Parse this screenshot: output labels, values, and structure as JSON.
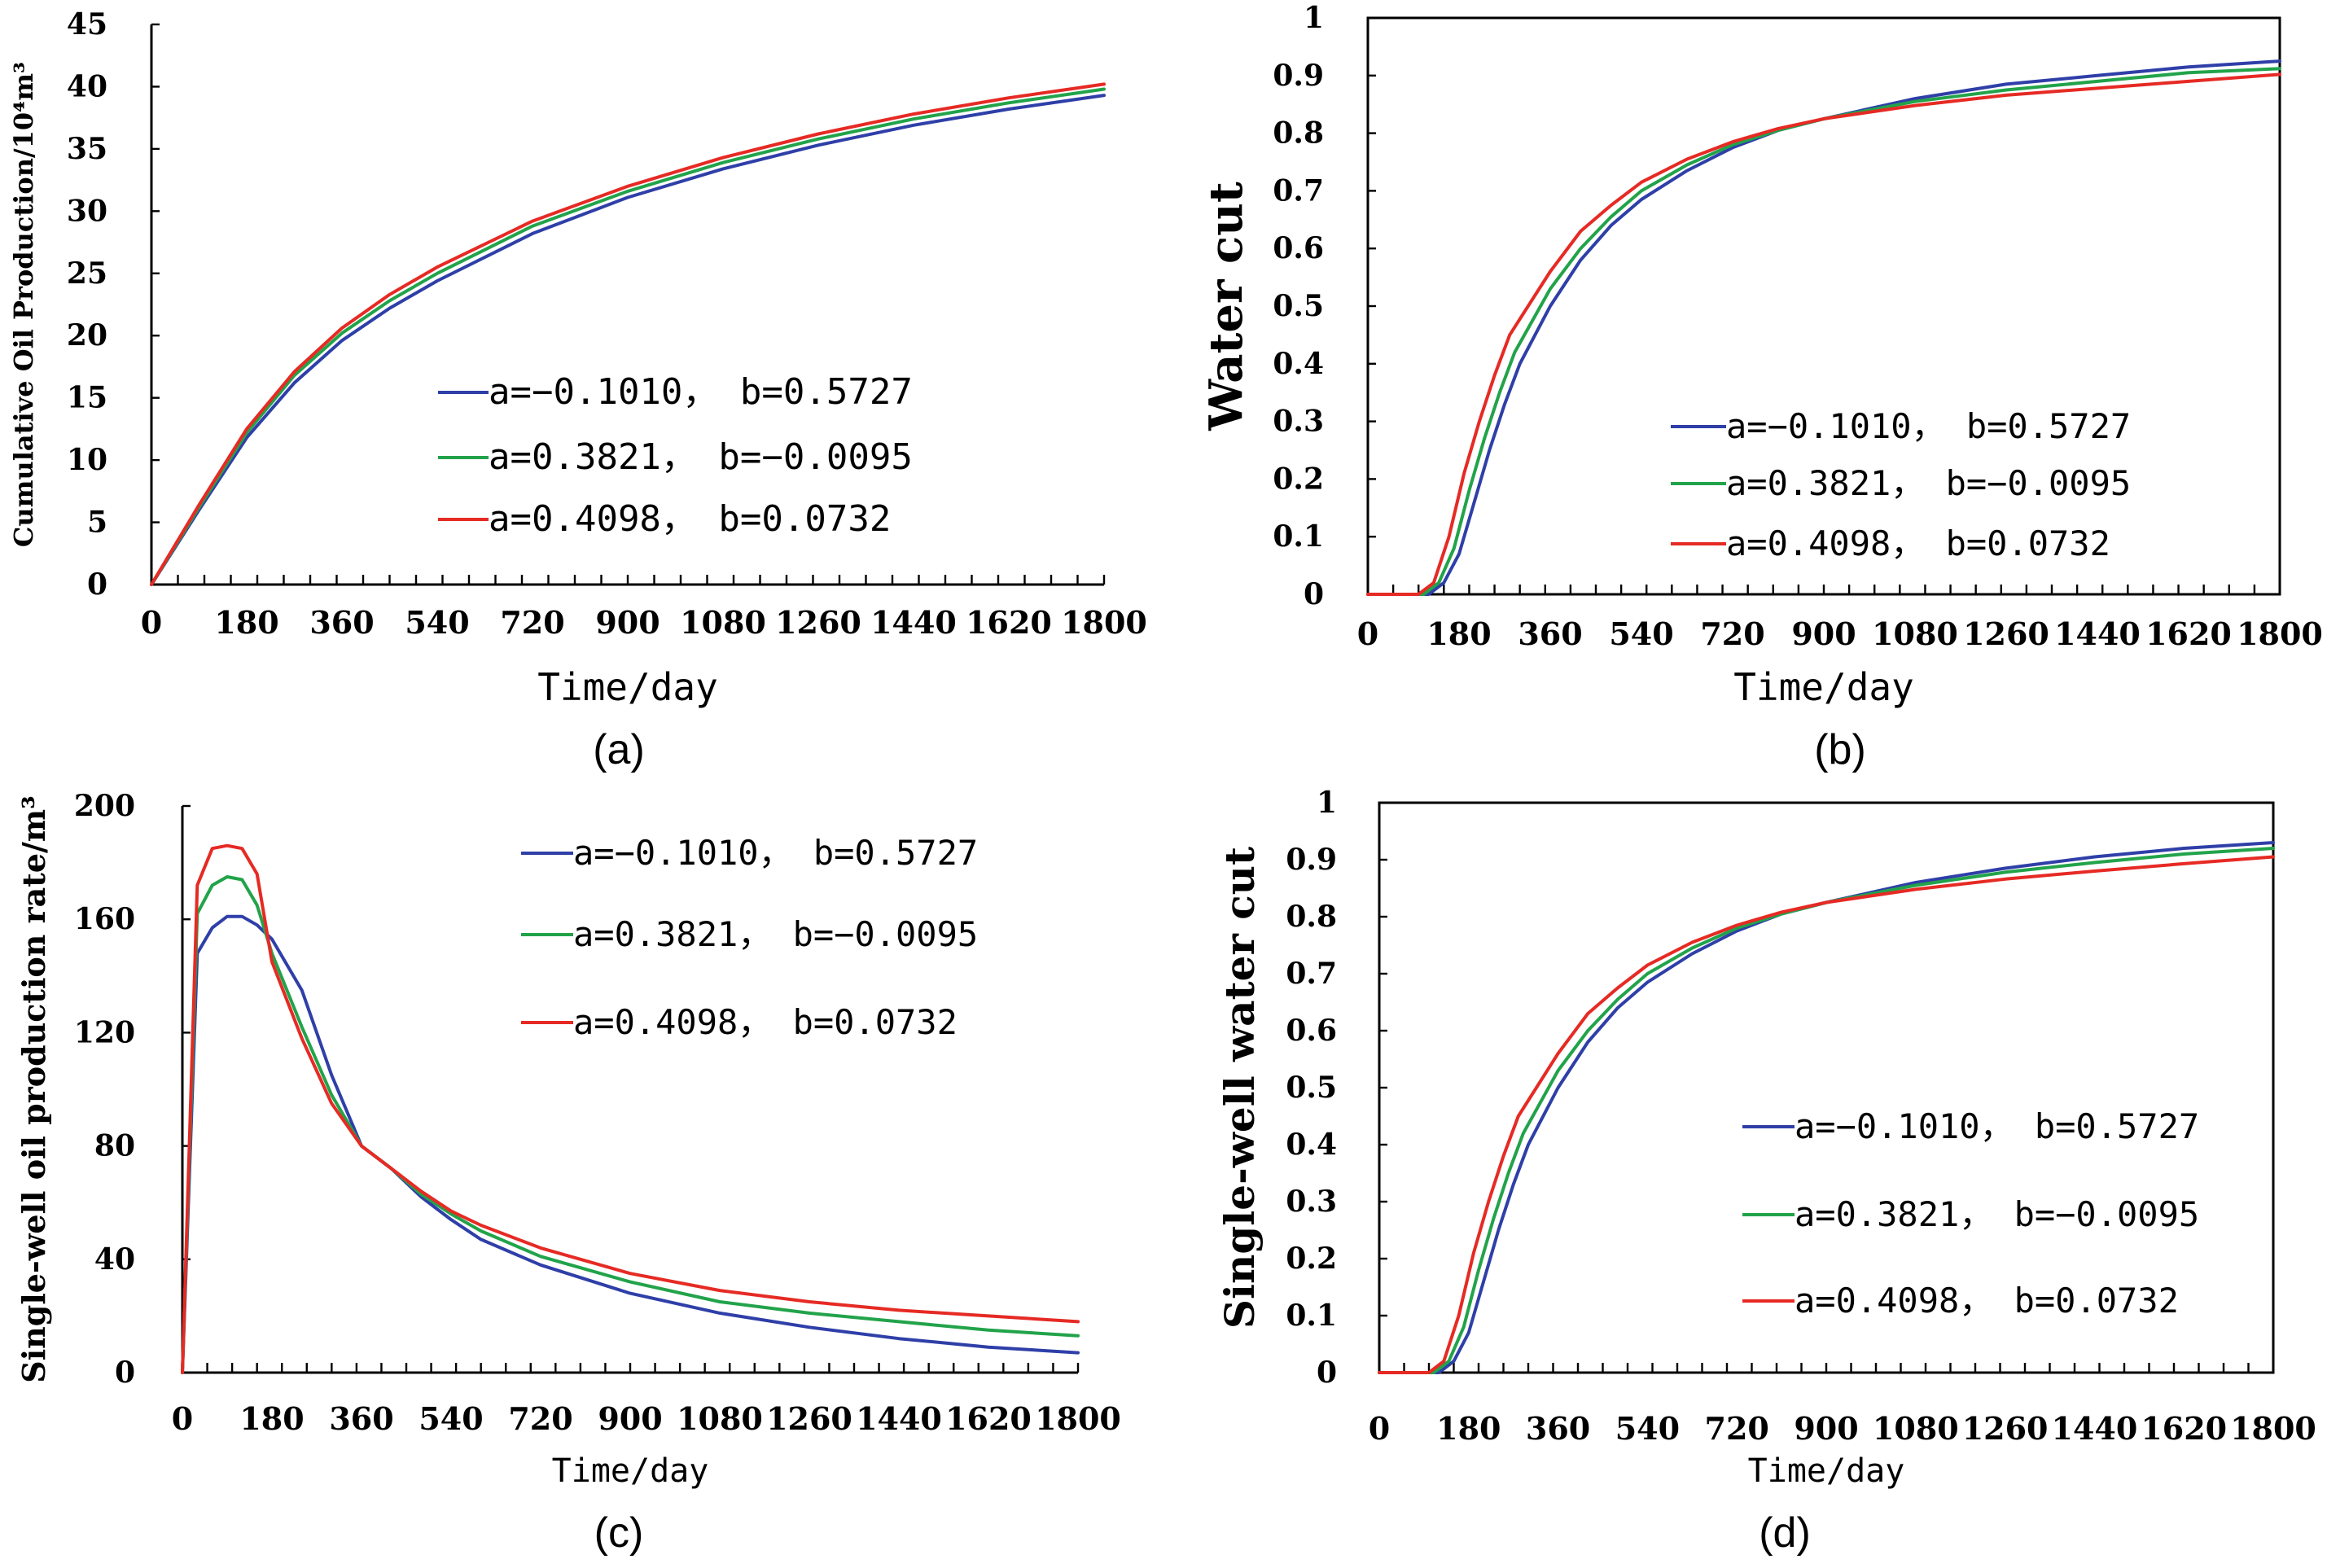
{
  "colors": {
    "blue": "#2f3fa8",
    "green": "#22a34a",
    "red": "#e62a24"
  },
  "chart_data": [
    {
      "id": "a",
      "type": "line",
      "caption": "(a)",
      "xlabel": "Time/day",
      "ylabel": "Cumulative Oil Production/10⁴m³",
      "xlim": [
        0,
        1800
      ],
      "ylim": [
        0,
        45
      ],
      "xticks": [
        "0",
        "180",
        "360",
        "540",
        "720",
        "900",
        "1080",
        "1260",
        "1440",
        "1620",
        "1800"
      ],
      "yticks": [
        "0",
        "5",
        "10",
        "15",
        "20",
        "25",
        "30",
        "35",
        "40",
        "45"
      ],
      "legend": [
        "a=−0.1010， b=0.5727",
        "a=0.3821， b=−0.0095",
        "a=0.4098， b=0.0732"
      ],
      "series": [
        {
          "name": "a=−0.1010, b=0.5727",
          "color": "#2f3fa8",
          "x": [
            0,
            90,
            180,
            270,
            360,
            450,
            540,
            720,
            900,
            1080,
            1260,
            1440,
            1620,
            1800
          ],
          "y": [
            0,
            6,
            11.8,
            16.2,
            19.6,
            22.2,
            24.4,
            28.2,
            31.1,
            33.4,
            35.3,
            36.9,
            38.2,
            39.3
          ]
        },
        {
          "name": "a=0.3821, b=−0.0095",
          "color": "#22a34a",
          "x": [
            0,
            90,
            180,
            270,
            360,
            450,
            540,
            720,
            900,
            1080,
            1260,
            1440,
            1620,
            1800
          ],
          "y": [
            0,
            6.2,
            12.2,
            16.8,
            20.2,
            22.8,
            25.0,
            28.8,
            31.6,
            33.9,
            35.8,
            37.4,
            38.7,
            39.8
          ]
        },
        {
          "name": "a=0.4098, b=0.0732",
          "color": "#e62a24",
          "x": [
            0,
            90,
            180,
            270,
            360,
            450,
            540,
            720,
            900,
            1080,
            1260,
            1440,
            1620,
            1800
          ],
          "y": [
            0,
            6.4,
            12.5,
            17.1,
            20.6,
            23.3,
            25.5,
            29.2,
            32.0,
            34.3,
            36.2,
            37.8,
            39.1,
            40.2
          ]
        }
      ]
    },
    {
      "id": "b",
      "type": "line",
      "caption": "(b)",
      "xlabel": "Time/day",
      "ylabel": "Water cut",
      "xlim": [
        0,
        1800
      ],
      "ylim": [
        0,
        1
      ],
      "xticks": [
        "0",
        "180",
        "360",
        "540",
        "720",
        "900",
        "1080",
        "1260",
        "1440",
        "1620",
        "1800"
      ],
      "yticks": [
        "0",
        "0.1",
        "0.2",
        "0.3",
        "0.4",
        "0.5",
        "0.6",
        "0.7",
        "0.8",
        "0.9",
        "1"
      ],
      "legend": [
        "a=−0.1010， b=0.5727",
        "a=0.3821， b=−0.0095",
        "a=0.4098， b=0.0732"
      ],
      "series": [
        {
          "name": "a=−0.1010, b=0.5727",
          "color": "#2f3fa8",
          "x": [
            0,
            120,
            150,
            180,
            210,
            240,
            270,
            300,
            360,
            420,
            480,
            540,
            630,
            720,
            810,
            900,
            1080,
            1260,
            1440,
            1620,
            1800
          ],
          "y": [
            0,
            0,
            0.02,
            0.07,
            0.16,
            0.25,
            0.33,
            0.4,
            0.5,
            0.58,
            0.64,
            0.685,
            0.735,
            0.775,
            0.805,
            0.825,
            0.86,
            0.885,
            0.9,
            0.915,
            0.925
          ]
        },
        {
          "name": "a=0.3821, b=−0.0095",
          "color": "#22a34a",
          "x": [
            0,
            110,
            140,
            170,
            200,
            230,
            260,
            290,
            360,
            420,
            480,
            540,
            630,
            720,
            810,
            900,
            1080,
            1260,
            1440,
            1620,
            1800
          ],
          "y": [
            0,
            0,
            0.02,
            0.08,
            0.18,
            0.27,
            0.35,
            0.42,
            0.53,
            0.6,
            0.655,
            0.7,
            0.745,
            0.78,
            0.805,
            0.825,
            0.855,
            0.875,
            0.89,
            0.905,
            0.912
          ]
        },
        {
          "name": "a=0.4098, b=0.0732",
          "color": "#e62a24",
          "x": [
            0,
            100,
            130,
            160,
            190,
            220,
            250,
            280,
            360,
            420,
            480,
            540,
            630,
            720,
            810,
            900,
            1080,
            1260,
            1440,
            1620,
            1800
          ],
          "y": [
            0,
            0,
            0.02,
            0.1,
            0.21,
            0.3,
            0.38,
            0.45,
            0.56,
            0.63,
            0.675,
            0.715,
            0.755,
            0.785,
            0.808,
            0.825,
            0.848,
            0.866,
            0.878,
            0.89,
            0.902
          ]
        }
      ]
    },
    {
      "id": "c",
      "type": "line",
      "caption": "(c)",
      "xlabel": "Time/day",
      "ylabel": "Single-well oil production rate/m³",
      "xlim": [
        0,
        1800
      ],
      "ylim": [
        0,
        200
      ],
      "xticks": [
        "0",
        "180",
        "360",
        "540",
        "720",
        "900",
        "1080",
        "1260",
        "1440",
        "1620",
        "1800"
      ],
      "yticks": [
        "0",
        "40",
        "80",
        "120",
        "160",
        "200"
      ],
      "legend": [
        "a=−0.1010， b=0.5727",
        "a=0.3821， b=−0.0095",
        "a=0.4098， b=0.0732"
      ],
      "series": [
        {
          "name": "a=−0.1010, b=0.5727",
          "color": "#2f3fa8",
          "x": [
            0,
            30,
            60,
            90,
            120,
            150,
            180,
            240,
            300,
            360,
            420,
            480,
            540,
            600,
            720,
            900,
            1080,
            1260,
            1440,
            1620,
            1800
          ],
          "y": [
            0,
            148,
            157,
            161,
            161,
            158,
            153,
            135,
            105,
            80,
            72,
            62,
            54,
            47,
            38,
            28,
            21,
            16,
            12,
            9,
            7
          ]
        },
        {
          "name": "a=0.3821, b=−0.0095",
          "color": "#22a34a",
          "x": [
            0,
            30,
            60,
            90,
            120,
            150,
            180,
            240,
            300,
            360,
            420,
            480,
            540,
            600,
            720,
            900,
            1080,
            1260,
            1440,
            1620,
            1800
          ],
          "y": [
            0,
            162,
            172,
            175,
            174,
            165,
            148,
            122,
            98,
            80,
            72,
            63,
            56,
            50,
            41,
            32,
            25,
            21,
            18,
            15,
            13
          ]
        },
        {
          "name": "a=0.4098, b=0.0732",
          "color": "#e62a24",
          "x": [
            0,
            30,
            60,
            90,
            120,
            150,
            180,
            240,
            300,
            360,
            420,
            480,
            540,
            600,
            720,
            900,
            1080,
            1260,
            1440,
            1620,
            1800
          ],
          "y": [
            0,
            172,
            185,
            186,
            185,
            176,
            145,
            118,
            95,
            80,
            72,
            64,
            57,
            52,
            44,
            35,
            29,
            25,
            22,
            20,
            18
          ]
        }
      ]
    },
    {
      "id": "d",
      "type": "line",
      "caption": "(d)",
      "xlabel": "Time/day",
      "ylabel": "Single-well water cut",
      "xlim": [
        0,
        1800
      ],
      "ylim": [
        0,
        1
      ],
      "xticks": [
        "0",
        "180",
        "360",
        "540",
        "720",
        "900",
        "1080",
        "1260",
        "1440",
        "1620",
        "1800"
      ],
      "yticks": [
        "0",
        "0.1",
        "0.2",
        "0.3",
        "0.4",
        "0.5",
        "0.6",
        "0.7",
        "0.8",
        "0.9",
        "1"
      ],
      "legend": [
        "a=−0.1010， b=0.5727",
        "a=0.3821， b=−0.0095",
        "a=0.4098， b=0.0732"
      ],
      "series": [
        {
          "name": "a=−0.1010, b=0.5727",
          "color": "#2f3fa8",
          "x": [
            0,
            120,
            150,
            180,
            210,
            240,
            270,
            300,
            360,
            420,
            480,
            540,
            630,
            720,
            810,
            900,
            1080,
            1260,
            1440,
            1620,
            1800
          ],
          "y": [
            0,
            0,
            0.02,
            0.07,
            0.16,
            0.25,
            0.33,
            0.4,
            0.5,
            0.58,
            0.64,
            0.685,
            0.735,
            0.775,
            0.805,
            0.825,
            0.86,
            0.885,
            0.905,
            0.92,
            0.93
          ]
        },
        {
          "name": "a=0.3821, b=−0.0095",
          "color": "#22a34a",
          "x": [
            0,
            110,
            140,
            170,
            200,
            230,
            260,
            290,
            360,
            420,
            480,
            540,
            630,
            720,
            810,
            900,
            1080,
            1260,
            1440,
            1620,
            1800
          ],
          "y": [
            0,
            0,
            0.02,
            0.08,
            0.18,
            0.27,
            0.35,
            0.42,
            0.53,
            0.6,
            0.655,
            0.7,
            0.745,
            0.78,
            0.805,
            0.825,
            0.855,
            0.878,
            0.895,
            0.91,
            0.92
          ]
        },
        {
          "name": "a=0.4098, b=0.0732",
          "color": "#e62a24",
          "x": [
            0,
            100,
            130,
            160,
            190,
            220,
            250,
            280,
            360,
            420,
            480,
            540,
            630,
            720,
            810,
            900,
            1080,
            1260,
            1440,
            1620,
            1800
          ],
          "y": [
            0,
            0,
            0.02,
            0.1,
            0.21,
            0.3,
            0.38,
            0.45,
            0.56,
            0.63,
            0.675,
            0.715,
            0.755,
            0.785,
            0.808,
            0.825,
            0.848,
            0.866,
            0.88,
            0.893,
            0.905
          ]
        }
      ]
    }
  ]
}
